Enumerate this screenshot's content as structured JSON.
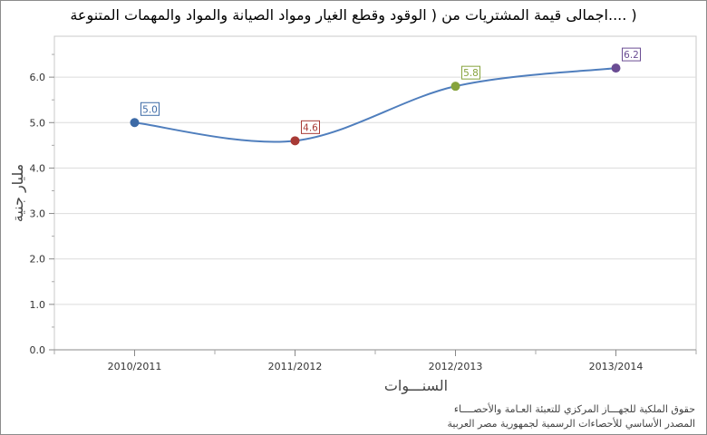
{
  "chart_data": {
    "type": "line",
    "title": "( ....اجمالى قيمة المشتريات من ( الوقود وقطع الغيار ومواد الصيانة والمواد والمهمات المتنوعة",
    "xlabel": "السنـــوات",
    "ylabel": "مليار جنية",
    "categories": [
      "2010/2011",
      "2011/2012",
      "2012/2013",
      "2013/2014"
    ],
    "values": [
      5.0,
      4.6,
      5.8,
      6.2
    ],
    "data_labels": [
      "5.0",
      "4.6",
      "5.8",
      "6.2"
    ],
    "point_colors": [
      "#3d6aa6",
      "#a83a35",
      "#86a33c",
      "#6a4c93"
    ],
    "line_color": "#4f7ebd",
    "y_ticks": [
      "0.0",
      "1.0",
      "2.0",
      "3.0",
      "4.0",
      "5.0",
      "6.0"
    ],
    "ylim": [
      0,
      6.9
    ],
    "grid": true,
    "smooth": true,
    "legend": "none"
  },
  "credits": {
    "line1": "حقوق الملكية للجهـــاز المركزي للتعبئة العـامة والأحصــــاء",
    "line2": "المصدر الأساسي للأحصاءات الرسمية لجمهورية مصر العربية"
  }
}
